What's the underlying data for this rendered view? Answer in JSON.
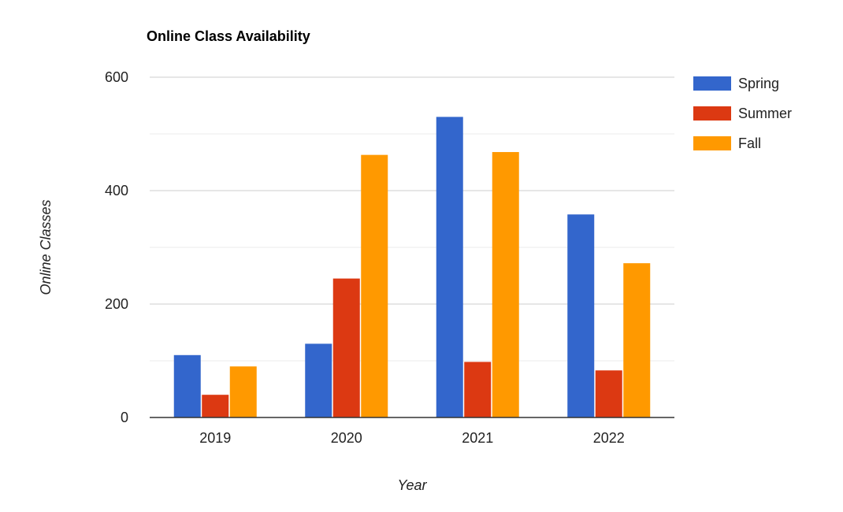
{
  "chart_data": {
    "type": "bar",
    "title": "Online Class Availability",
    "xlabel": "Year",
    "ylabel": "Online Classes",
    "categories": [
      "2019",
      "2020",
      "2021",
      "2022"
    ],
    "series": [
      {
        "name": "Spring",
        "color": "#3366cc",
        "values": [
          110,
          130,
          530,
          358
        ]
      },
      {
        "name": "Summer",
        "color": "#dc3912",
        "values": [
          40,
          245,
          98,
          83
        ]
      },
      {
        "name": "Fall",
        "color": "#ff9900",
        "values": [
          90,
          463,
          468,
          272
        ]
      }
    ],
    "ylim": [
      0,
      600
    ],
    "yticks": [
      0,
      200,
      400,
      600
    ],
    "grid": true,
    "minor_grid": true,
    "legend_position": "right"
  }
}
